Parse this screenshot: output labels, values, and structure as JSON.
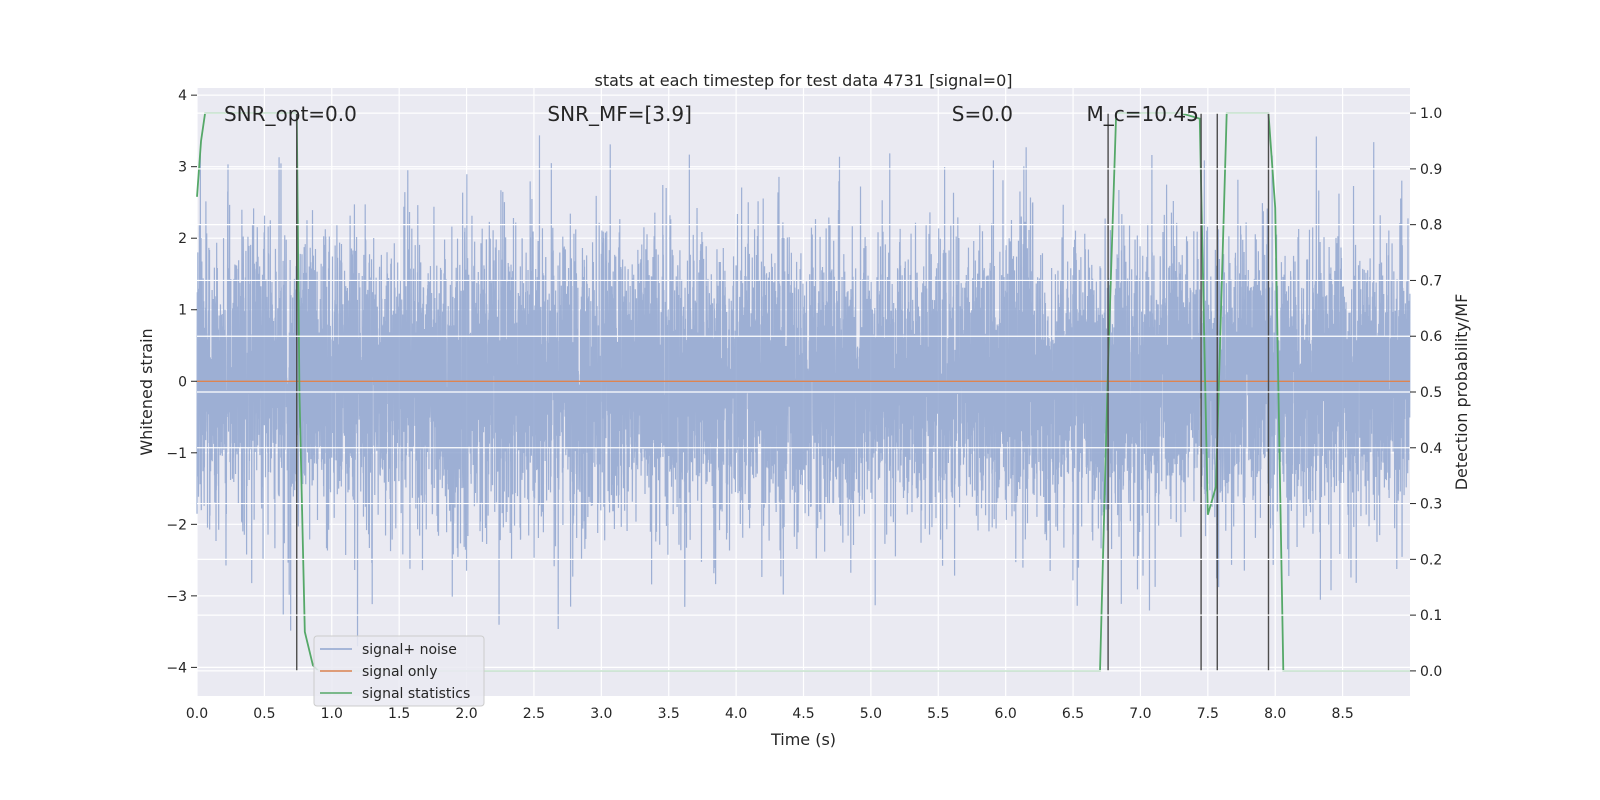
{
  "chart_data": {
    "type": "line",
    "title": "stats at each timestep for test data 4731 [signal=0]",
    "xlabel": "Time (s)",
    "ylabel": "Whitened strain",
    "y2label": "Detection probability/MF",
    "xlim": [
      0,
      9.0
    ],
    "ylim": [
      -4.4,
      4.1
    ],
    "y2lim": [
      -0.045,
      1.045
    ],
    "xticks": [
      0.0,
      0.5,
      1.0,
      1.5,
      2.0,
      2.5,
      3.0,
      3.5,
      4.0,
      4.5,
      5.0,
      5.5,
      6.0,
      6.5,
      7.0,
      7.5,
      8.0,
      8.5
    ],
    "xtick_labels": [
      "0.0",
      "0.5",
      "1.0",
      "1.5",
      "2.0",
      "2.5",
      "3.0",
      "3.5",
      "4.0",
      "4.5",
      "5.0",
      "5.5",
      "6.0",
      "6.5",
      "7.0",
      "7.5",
      "8.0",
      "8.5"
    ],
    "yticks": [
      4,
      3,
      2,
      1,
      0,
      -1,
      -2,
      -3,
      -4
    ],
    "ytick_labels": [
      "4",
      "3",
      "2",
      "1",
      "0",
      "−1",
      "−2",
      "−3",
      "−4"
    ],
    "y2ticks": [
      1.0,
      0.9,
      0.8,
      0.7,
      0.6,
      0.5,
      0.4,
      0.3,
      0.2,
      0.1,
      0.0
    ],
    "y2tick_labels": [
      "1.0",
      "0.9",
      "0.8",
      "0.7",
      "0.6",
      "0.5",
      "0.4",
      "0.3",
      "0.2",
      "0.1",
      "0.0"
    ],
    "grid": true,
    "legend_position": "lower-left",
    "annotations": [
      {
        "text": "SNR_opt=0.0",
        "x": 0.2
      },
      {
        "text": "SNR_MF=[3.9]",
        "x": 2.6
      },
      {
        "text": "S=0.0",
        "x": 5.6
      },
      {
        "text": "M_c=10.45",
        "x": 6.6
      }
    ],
    "series": [
      {
        "name": "signal+ noise",
        "color": "#8fa5cf",
        "axis": "left",
        "kind": "noise",
        "duration": 9.0,
        "sample_rate": 1000,
        "std": 1.0,
        "max": 3.5,
        "min": -4.0
      },
      {
        "name": "signal only",
        "color": "#dd8452",
        "axis": "left",
        "x": [
          0.0,
          9.0
        ],
        "y": [
          0.0,
          0.0
        ]
      },
      {
        "name": "signal statistics",
        "color": "#55a868",
        "axis": "right",
        "x": [
          0.0,
          0.03,
          0.06,
          0.12,
          0.5,
          0.74,
          0.76,
          0.8,
          0.86,
          0.9,
          6.5,
          6.7,
          6.76,
          6.82,
          7.3,
          7.44,
          7.5,
          7.56,
          7.64,
          7.95,
          8.0,
          8.06,
          8.1,
          9.0
        ],
        "y": [
          0.85,
          0.95,
          1.0,
          1.0,
          1.0,
          1.0,
          0.5,
          0.07,
          0.01,
          0.0,
          0.0,
          0.0,
          0.55,
          1.0,
          1.0,
          0.99,
          0.28,
          0.33,
          1.0,
          1.0,
          0.83,
          0.0,
          0.0,
          0.0
        ]
      }
    ],
    "vertical_markers": {
      "color": "#4c4c4c",
      "x": [
        0.74,
        6.76,
        7.45,
        7.57,
        7.95
      ],
      "y_range": [
        0.0,
        1.0
      ]
    }
  }
}
